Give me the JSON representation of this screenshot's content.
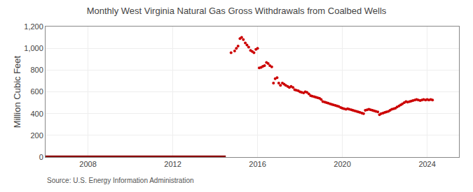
{
  "chart_data": {
    "type": "scatter",
    "title": "Monthly West Virginia Natural Gas Gross Withdrawals from Coalbed Wells",
    "ylabel": "Million Cubic Feet",
    "annotations": [
      "Source: U.S. Energy Information Administration"
    ],
    "xlim": [
      2006.0,
      2025.5
    ],
    "xticks": [
      2008,
      2012,
      2016,
      2020,
      2024
    ],
    "ylim": [
      0,
      1200
    ],
    "yticks": [
      0,
      200,
      400,
      600,
      800,
      {
        "value": 1000,
        "label": "1,000"
      },
      {
        "value": 1200,
        "label": "1,200"
      }
    ],
    "grid": true,
    "series": [
      {
        "type": "line",
        "color": "#8B0000",
        "x": [
          2006.0,
          2014.5
        ],
        "values": [
          2,
          2
        ]
      },
      {
        "type": "scatter",
        "color": "#cc0000",
        "x": [
          2014.75,
          2014.92,
          2015.0,
          2015.08,
          2015.17,
          2015.25,
          2015.33,
          2015.42,
          2015.5,
          2015.58,
          2015.67,
          2015.75,
          2015.83,
          2015.92,
          2016.0,
          2016.08,
          2016.17,
          2016.25,
          2016.33,
          2016.42,
          2016.5,
          2016.58,
          2016.67,
          2016.75,
          2016.83,
          2016.92,
          2017.0,
          2017.08,
          2017.17,
          2017.25,
          2017.33,
          2017.42,
          2017.5,
          2017.58,
          2017.67,
          2017.75,
          2017.83,
          2017.92,
          2018.0,
          2018.08,
          2018.17,
          2018.25,
          2018.33,
          2018.42,
          2018.5,
          2018.58,
          2018.67,
          2018.75,
          2018.83,
          2018.92,
          2019.0,
          2019.08,
          2019.17,
          2019.25,
          2019.33,
          2019.42,
          2019.5,
          2019.58,
          2019.67,
          2019.75,
          2019.83,
          2019.92,
          2020.0,
          2020.08,
          2020.17,
          2020.25,
          2020.33,
          2020.42,
          2020.5,
          2020.58,
          2020.67,
          2020.75,
          2020.83,
          2020.92,
          2021.0,
          2021.08,
          2021.17,
          2021.25,
          2021.33,
          2021.42,
          2021.5,
          2021.58,
          2021.67,
          2021.75,
          2021.83,
          2021.92,
          2022.0,
          2022.08,
          2022.17,
          2022.25,
          2022.33,
          2022.42,
          2022.5,
          2022.58,
          2022.67,
          2022.75,
          2022.83,
          2022.92,
          2023.0,
          2023.08,
          2023.17,
          2023.25,
          2023.33,
          2023.42,
          2023.5,
          2023.58,
          2023.67,
          2023.75,
          2023.83,
          2023.92,
          2024.0,
          2024.08,
          2024.17,
          2024.25
        ],
        "values": [
          960,
          975,
          1000,
          1020,
          1090,
          1100,
          1080,
          1050,
          1030,
          1010,
          980,
          970,
          960,
          990,
          1000,
          820,
          825,
          835,
          840,
          870,
          860,
          840,
          830,
          680,
          720,
          730,
          680,
          660,
          680,
          670,
          660,
          650,
          640,
          650,
          640,
          620,
          615,
          610,
          600,
          595,
          590,
          600,
          595,
          580,
          565,
          560,
          555,
          550,
          545,
          540,
          530,
          510,
          505,
          500,
          495,
          490,
          485,
          480,
          475,
          470,
          465,
          455,
          450,
          445,
          440,
          445,
          440,
          435,
          430,
          425,
          420,
          415,
          410,
          405,
          400,
          430,
          435,
          440,
          435,
          430,
          425,
          420,
          415,
          390,
          400,
          405,
          410,
          415,
          420,
          430,
          440,
          445,
          450,
          460,
          470,
          480,
          490,
          500,
          510,
          505,
          510,
          515,
          520,
          525,
          530,
          525,
          520,
          525,
          530,
          525,
          530,
          525,
          530,
          525
        ]
      }
    ]
  }
}
